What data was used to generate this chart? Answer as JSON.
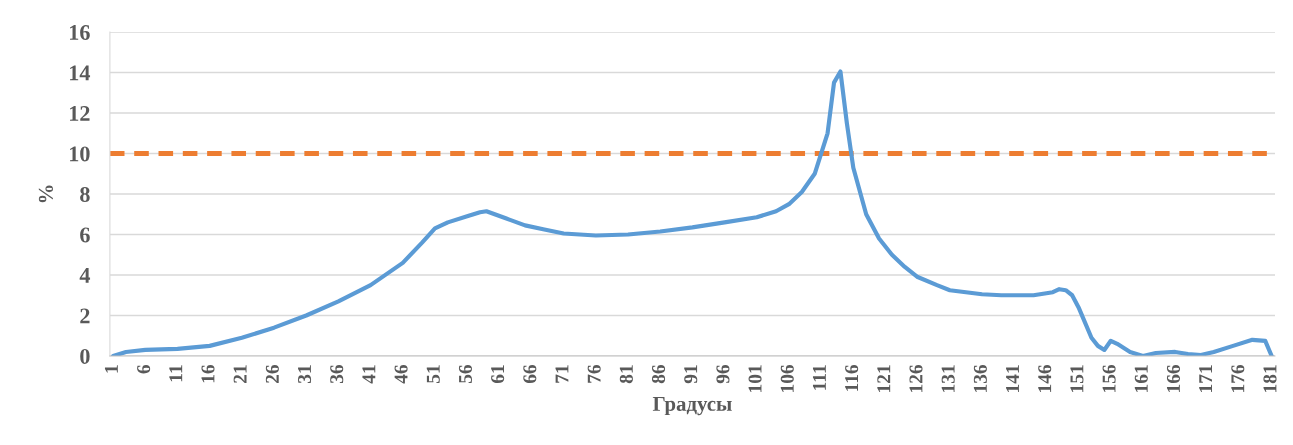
{
  "chart_data": {
    "type": "line",
    "xlabel": "Градусы",
    "ylabel": "%",
    "xlim": [
      0.5,
      181.5
    ],
    "xticks": [
      1,
      6,
      11,
      16,
      21,
      26,
      31,
      36,
      41,
      46,
      51,
      56,
      61,
      66,
      71,
      76,
      81,
      86,
      91,
      96,
      101,
      106,
      111,
      116,
      121,
      126,
      131,
      136,
      141,
      146,
      151,
      156,
      161,
      166,
      171,
      176,
      181
    ],
    "ylim": [
      0,
      16
    ],
    "yticks": [
      0,
      2,
      4,
      6,
      8,
      10,
      12,
      14,
      16
    ],
    "grid": "y",
    "marker": "none",
    "line_style": "solid",
    "series": [
      {
        "color": "#5b9bd5",
        "x": [
          1,
          3,
          6,
          11,
          16,
          21,
          26,
          31,
          36,
          41,
          46,
          49,
          51,
          53,
          56,
          58,
          59,
          62,
          65,
          68,
          71,
          76,
          81,
          86,
          91,
          96,
          101,
          104,
          106,
          108,
          110,
          111,
          112,
          113,
          114,
          115,
          116,
          118,
          120,
          122,
          124,
          126,
          129,
          131,
          136,
          139,
          144,
          147,
          148,
          149,
          150,
          151,
          153,
          154,
          155,
          156,
          157,
          159,
          161,
          163,
          166,
          168,
          170,
          172,
          175,
          178,
          180,
          181
        ],
        "values": [
          0,
          0.2,
          0.3,
          0.35,
          0.5,
          0.9,
          1.4,
          2.0,
          2.7,
          3.5,
          4.6,
          5.6,
          6.3,
          6.6,
          6.9,
          7.1,
          7.15,
          6.8,
          6.45,
          6.25,
          6.05,
          5.95,
          6.0,
          6.15,
          6.35,
          6.6,
          6.85,
          7.15,
          7.5,
          8.1,
          9.0,
          10.0,
          11.0,
          13.5,
          14.05,
          11.5,
          9.3,
          7.0,
          5.8,
          5.0,
          4.4,
          3.9,
          3.5,
          3.25,
          3.05,
          3.0,
          3.0,
          3.15,
          3.3,
          3.25,
          3.0,
          2.4,
          0.9,
          0.5,
          0.3,
          0.75,
          0.6,
          0.2,
          0.0,
          0.15,
          0.2,
          0.1,
          0.05,
          0.2,
          0.5,
          0.8,
          0.75,
          0
        ]
      }
    ],
    "ref_lines": [
      {
        "axis": "y",
        "value": 10,
        "color": "#ed7d31",
        "line_style": "dashed"
      }
    ]
  }
}
